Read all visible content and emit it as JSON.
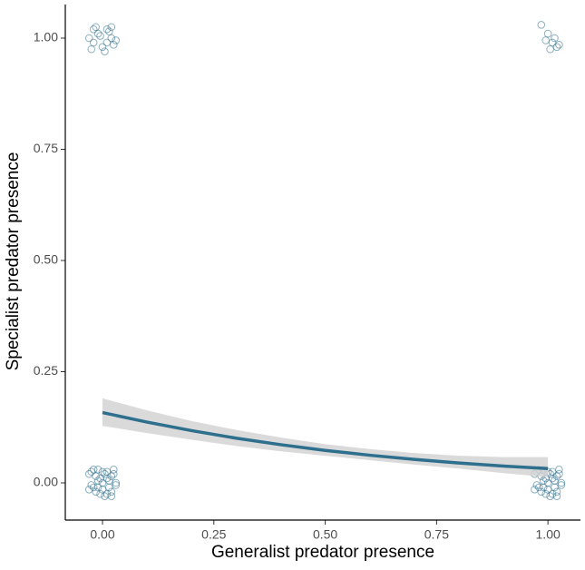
{
  "chart_data": {
    "type": "scatter",
    "x_label": "Generalist predator presence",
    "y_label": "Specialist predator presence",
    "xlim": [
      -0.0835,
      1.073
    ],
    "ylim": [
      -0.0837,
      1.0755
    ],
    "xticks": [
      {
        "value": 0,
        "label": "0.00"
      },
      {
        "value": 0.25,
        "label": "0.25"
      },
      {
        "value": 0.5,
        "label": "0.50"
      },
      {
        "value": 0.75,
        "label": "0.75"
      },
      {
        "value": 1,
        "label": "1.00"
      }
    ],
    "yticks": [
      {
        "value": 0,
        "label": "0.00"
      },
      {
        "value": 0.25,
        "label": "0.25"
      },
      {
        "value": 0.5,
        "label": "0.50"
      },
      {
        "value": 0.75,
        "label": "0.75"
      },
      {
        "value": 1,
        "label": "1.00"
      }
    ],
    "points": {
      "color": "#2e6f8e",
      "x": [
        -0.02,
        0.01,
        -0.03,
        0.02,
        0.0,
        -0.01,
        0.03,
        -0.025,
        0.015,
        -0.005,
        0.025,
        -0.015,
        0.005,
        0.02,
        -0.02,
        0.01,
        0.985,
        1.0,
        1.01,
        1.02,
        0.995,
        1.015,
        1.005,
        1.025,
        -0.03,
        -0.02,
        -0.01,
        0,
        0.01,
        0.02,
        0.03,
        -0.025,
        -0.015,
        -0.005,
        0.005,
        0.015,
        0.025,
        -0.03,
        -0.02,
        -0.01,
        0,
        0.01,
        0.02,
        0.03,
        -0.025,
        -0.015,
        -0.005,
        0.005,
        0.015,
        0.025,
        -0.01,
        0.0,
        0.01,
        0.02,
        0.97,
        0.98,
        0.99,
        1,
        1.01,
        1.02,
        1.03,
        0.975,
        0.985,
        0.995,
        1.005,
        1.015,
        1.025,
        0.97,
        0.98,
        0.99,
        1,
        1.01,
        1.02,
        1.03,
        0.975,
        0.985,
        0.995,
        1.005,
        1.015,
        1.025,
        0.99,
        1.0,
        1.01,
        1.02
      ],
      "y": [
        1.02,
        0.99,
        1.0,
        1.025,
        0.98,
        1.01,
        0.995,
        0.975,
        1.015,
        1.005,
        0.985,
        1.025,
        0.97,
        1.0,
        0.99,
        1.02,
        1.03,
        1.01,
        0.99,
        0.98,
        0.995,
        1.0,
        0.975,
        0.985,
        0.02,
        -0.01,
        0.03,
        0.0,
        -0.025,
        0.015,
        -0.005,
        0.025,
        -0.02,
        0.01,
        -0.03,
        0.005,
        0.02,
        -0.015,
        0.03,
        -0.01,
        0.025,
        0.01,
        -0.02,
        0.0,
        -0.005,
        0.015,
        -0.025,
        0.02,
        -0.01,
        0.03,
        0.005,
        -0.015,
        0.025,
        -0.03,
        0.02,
        -0.01,
        0.03,
        0.0,
        -0.025,
        0.015,
        -0.005,
        0.025,
        -0.02,
        0.01,
        -0.03,
        0.005,
        0.02,
        -0.015,
        0.03,
        -0.01,
        0.025,
        0.01,
        -0.02,
        0.0,
        -0.005,
        0.015,
        -0.025,
        0.02,
        -0.01,
        0.03,
        0.005,
        -0.015,
        0.025,
        -0.03
      ]
    },
    "fit": {
      "color": "#2e6f8e",
      "band_color": "#d3d3d3",
      "x": [
        0,
        0.1,
        0.2,
        0.3,
        0.4,
        0.5,
        0.6,
        0.7,
        0.8,
        0.9,
        1.0
      ],
      "y": [
        0.158,
        0.1366,
        0.1174,
        0.1005,
        0.0858,
        0.073,
        0.0621,
        0.0527,
        0.0447,
        0.0378,
        0.032
      ],
      "lower": [
        0.128,
        0.112,
        0.097,
        0.083,
        0.071,
        0.061,
        0.051,
        0.041,
        0.032,
        0.022,
        0.013
      ],
      "upper": [
        0.19,
        0.163,
        0.139,
        0.119,
        0.102,
        0.087,
        0.076,
        0.067,
        0.061,
        0.058,
        0.058
      ]
    }
  }
}
